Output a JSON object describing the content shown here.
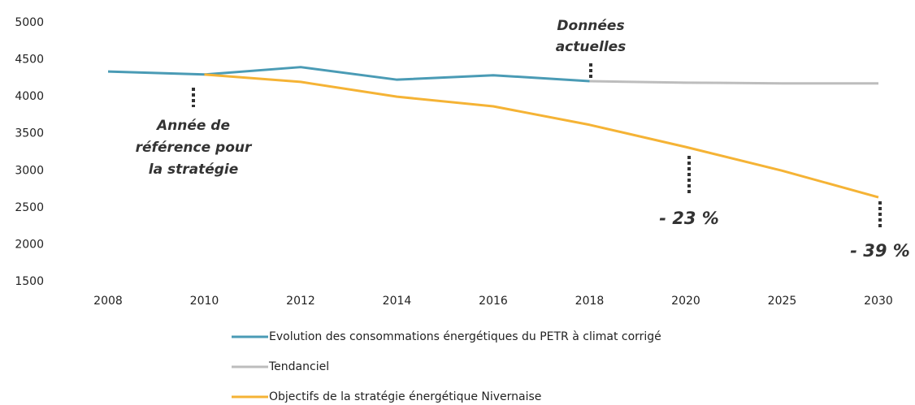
{
  "chart_data": {
    "type": "line",
    "categories": [
      "2008",
      "2010",
      "2012",
      "2014",
      "2016",
      "2018",
      "2020",
      "2025",
      "2030"
    ],
    "series": [
      {
        "name": "Evolution des consommations énergétiques du PETR à climat corrigé",
        "color": "#4a9bb5",
        "values": [
          4340,
          4300,
          4400,
          4230,
          4290,
          4210,
          null,
          null,
          null
        ]
      },
      {
        "name": "Tendanciel",
        "color": "#bdbdbd",
        "values": [
          null,
          null,
          null,
          null,
          null,
          4210,
          4190,
          4180,
          4180
        ]
      },
      {
        "name": "Objectifs de la stratégie énergétique Nivernaise",
        "color": "#f5b335",
        "values": [
          null,
          4300,
          4200,
          4000,
          3870,
          3620,
          3320,
          3000,
          2640
        ]
      }
    ],
    "ylim": [
      1500,
      5000
    ],
    "yticks": [
      1500,
      2000,
      2500,
      3000,
      3500,
      4000,
      4500,
      5000
    ],
    "grid": false,
    "annotations": [
      [
        "Données",
        "actuelles"
      ],
      [
        "Année de",
        "référence pour",
        "la stratégie"
      ],
      [
        "- 23 %"
      ],
      [
        "- 39 %"
      ]
    ]
  }
}
